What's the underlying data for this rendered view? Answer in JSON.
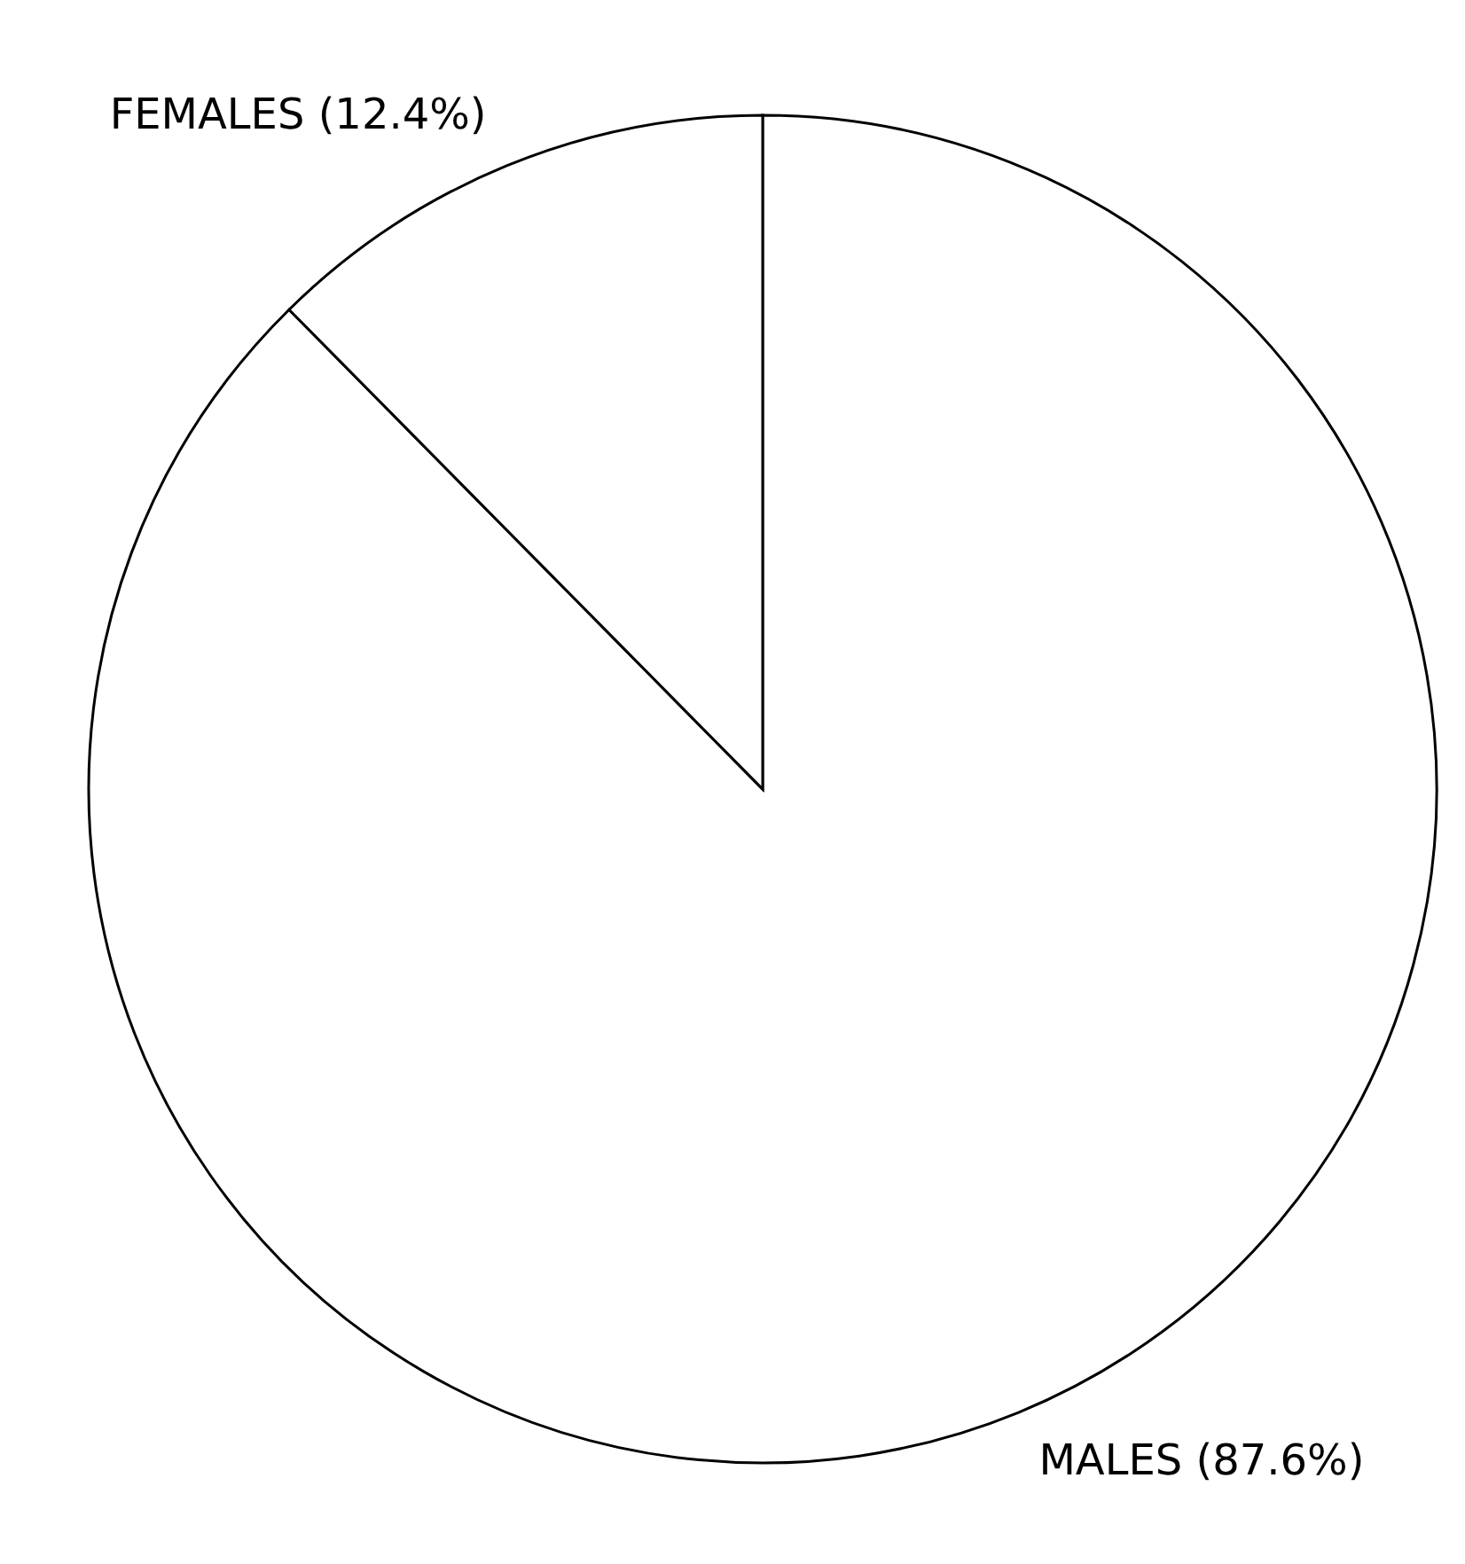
{
  "chart_data": {
    "type": "pie",
    "categories": [
      "MALES (87.6%)",
      "FEMALES (12.4%)"
    ],
    "values": [
      87.6,
      12.4
    ],
    "colors": [
      "#ffffff",
      "#ffffff"
    ]
  }
}
